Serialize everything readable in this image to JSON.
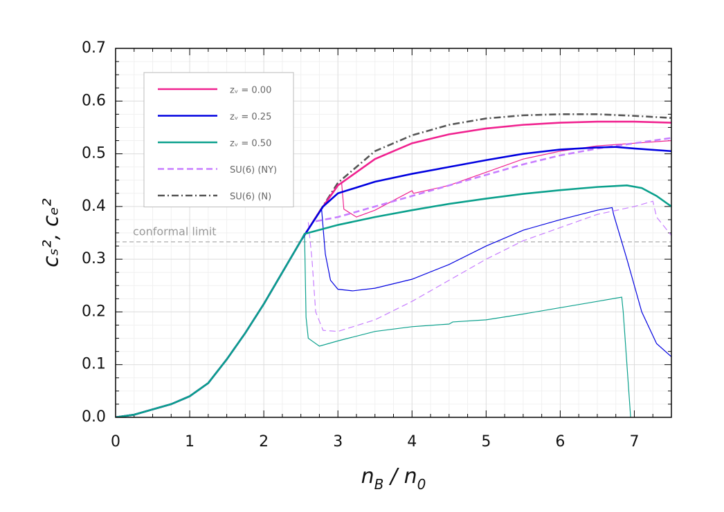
{
  "chart_data": {
    "type": "line",
    "xlabel": [
      {
        "text": "n"
      },
      {
        "text": "B",
        "shift": "sub"
      },
      {
        "text": " / n"
      },
      {
        "text": "0",
        "shift": "sub"
      }
    ],
    "ylabel": "cₛ², cₑ²",
    "xlim": [
      0,
      7.5
    ],
    "xticks": [
      0,
      1,
      2,
      3,
      4,
      5,
      6,
      7
    ],
    "ylim": [
      0,
      0.7
    ],
    "yticks": [
      {
        "value": 0,
        "label": "0.0"
      },
      0.1,
      0.2,
      0.3,
      0.4,
      0.5,
      0.6,
      0.7
    ],
    "grid": true,
    "minor_divisions": 4,
    "legend": "upper left",
    "annotation": {
      "text": "conformal limit",
      "value": 0.333
    },
    "series": [
      {
        "name": "zᵥ = 0.00",
        "color": "#f0218f",
        "width": "thin",
        "dash": "solid",
        "x": [
          3.05,
          3.08,
          3.25,
          3.5,
          4.0,
          4.02,
          4.5,
          5.0,
          5.5,
          6.0,
          6.5,
          7.0,
          7.5
        ],
        "values": [
          0.445,
          0.395,
          0.38,
          0.393,
          0.43,
          0.425,
          0.44,
          0.465,
          0.49,
          0.505,
          0.515,
          0.52,
          0.525
        ]
      },
      {
        "name": "zᵥ = 0.25",
        "color": "#0000e0",
        "width": "thin",
        "dash": "solid",
        "x": [
          2.78,
          2.8,
          2.83,
          2.9,
          3.0,
          3.2,
          3.5,
          4.0,
          4.5,
          5.0,
          5.5,
          6.0,
          6.5,
          6.7,
          6.72,
          6.9,
          7.1,
          7.3,
          7.5
        ],
        "values": [
          0.395,
          0.36,
          0.31,
          0.26,
          0.243,
          0.24,
          0.245,
          0.262,
          0.29,
          0.325,
          0.355,
          0.375,
          0.393,
          0.398,
          0.385,
          0.3,
          0.2,
          0.14,
          0.115
        ]
      },
      {
        "name": "SU(6) (NY)",
        "color": "#c77dff",
        "width": "thin",
        "dash": "dashed",
        "x": [
          2.6,
          2.65,
          2.7,
          2.8,
          3.0,
          3.5,
          4.0,
          4.5,
          5.0,
          5.5,
          6.0,
          6.5,
          7.0,
          7.25,
          7.3,
          7.5
        ],
        "values": [
          0.37,
          0.3,
          0.2,
          0.165,
          0.163,
          0.185,
          0.22,
          0.26,
          0.3,
          0.335,
          0.36,
          0.385,
          0.4,
          0.41,
          0.38,
          0.345
        ]
      },
      {
        "name": "zᵥ = 0.50",
        "color": "#0aa08c",
        "width": "thin",
        "dash": "solid",
        "x": [
          2.55,
          2.57,
          2.6,
          2.75,
          3.0,
          3.5,
          4.0,
          4.5,
          4.55,
          5.0,
          5.5,
          6.0,
          6.5,
          6.83,
          6.85,
          6.95
        ],
        "values": [
          0.345,
          0.19,
          0.15,
          0.135,
          0.145,
          0.163,
          0.172,
          0.177,
          0.181,
          0.185,
          0.196,
          0.208,
          0.22,
          0.228,
          0.2,
          0.0
        ]
      },
      {
        "name": "SU(6) (N)",
        "color": "#555555",
        "width": "thick",
        "dash": "dashdot",
        "x": [
          0,
          0.25,
          0.5,
          0.75,
          1.0,
          1.25,
          1.5,
          1.75,
          2.0,
          2.25,
          2.5,
          2.75,
          3.0,
          3.25,
          3.5,
          4.0,
          4.5,
          5.0,
          5.5,
          6.0,
          6.5,
          7.0,
          7.5
        ],
        "values": [
          0.0,
          0.005,
          0.015,
          0.025,
          0.04,
          0.065,
          0.11,
          0.16,
          0.215,
          0.275,
          0.335,
          0.39,
          0.445,
          0.475,
          0.505,
          0.535,
          0.555,
          0.567,
          0.573,
          0.575,
          0.575,
          0.572,
          0.568
        ]
      },
      {
        "name": "SU(6) (NY)",
        "color": "#c77dff",
        "width": "thick",
        "dash": "dashed",
        "x": [
          2.7,
          3.0,
          3.5,
          4.0,
          4.5,
          5.0,
          5.5,
          6.0,
          6.5,
          7.0,
          7.5
        ],
        "values": [
          0.372,
          0.38,
          0.4,
          0.42,
          0.44,
          0.46,
          0.48,
          0.497,
          0.51,
          0.52,
          0.53
        ]
      },
      {
        "name": "zᵥ = 0.00",
        "color": "#f0218f",
        "width": "thick",
        "dash": "solid",
        "x": [
          0,
          0.25,
          0.5,
          0.75,
          1.0,
          1.25,
          1.5,
          1.75,
          2.0,
          2.25,
          2.5,
          2.75,
          3.0,
          3.5,
          4.0,
          4.5,
          5.0,
          5.5,
          6.0,
          6.5,
          7.0,
          7.5
        ],
        "values": [
          0.0,
          0.005,
          0.015,
          0.025,
          0.04,
          0.065,
          0.11,
          0.16,
          0.215,
          0.275,
          0.335,
          0.39,
          0.44,
          0.49,
          0.52,
          0.537,
          0.548,
          0.555,
          0.559,
          0.561,
          0.561,
          0.559
        ]
      },
      {
        "name": "zᵥ = 0.25",
        "color": "#0000e0",
        "width": "thick",
        "dash": "solid",
        "x": [
          0,
          0.25,
          0.5,
          0.75,
          1.0,
          1.25,
          1.5,
          1.75,
          2.0,
          2.25,
          2.5,
          2.8,
          3.0,
          3.5,
          4.0,
          4.5,
          5.0,
          5.5,
          6.0,
          6.5,
          6.75,
          7.0,
          7.5
        ],
        "values": [
          0.0,
          0.005,
          0.015,
          0.025,
          0.04,
          0.065,
          0.11,
          0.16,
          0.215,
          0.275,
          0.335,
          0.4,
          0.425,
          0.447,
          0.462,
          0.475,
          0.488,
          0.5,
          0.508,
          0.512,
          0.513,
          0.51,
          0.505
        ]
      },
      {
        "name": "zᵥ = 0.50",
        "color": "#0aa08c",
        "width": "thick",
        "dash": "solid",
        "x": [
          0,
          0.25,
          0.5,
          0.75,
          1.0,
          1.25,
          1.5,
          1.75,
          2.0,
          2.25,
          2.5,
          2.55,
          3.0,
          3.5,
          4.0,
          4.5,
          5.0,
          5.5,
          6.0,
          6.5,
          6.9,
          7.1,
          7.3,
          7.5
        ],
        "values": [
          0.0,
          0.005,
          0.015,
          0.025,
          0.04,
          0.065,
          0.11,
          0.16,
          0.215,
          0.275,
          0.335,
          0.348,
          0.365,
          0.38,
          0.393,
          0.405,
          0.415,
          0.424,
          0.431,
          0.437,
          0.44,
          0.435,
          0.42,
          0.4
        ]
      }
    ]
  }
}
